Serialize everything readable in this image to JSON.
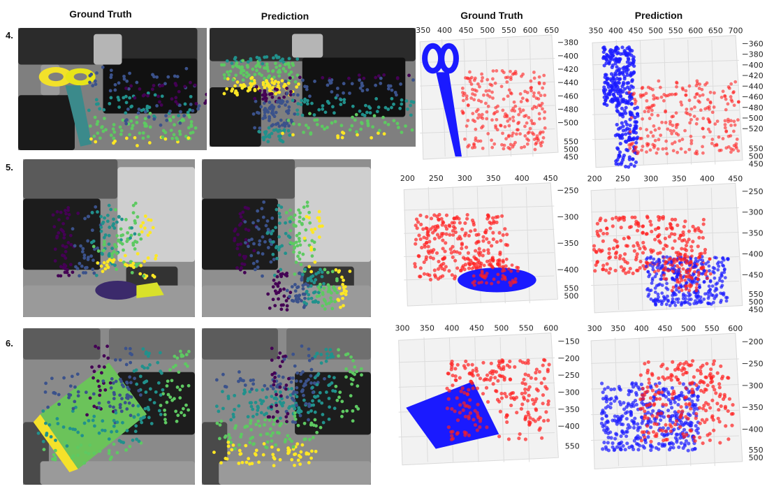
{
  "headers": [
    "Ground Truth",
    "Prediction",
    "Ground Truth",
    "Prediction"
  ],
  "row_labels": [
    "4.",
    "5.",
    "6."
  ],
  "colors": {
    "object": "#1a1aff",
    "hand": "#ff2020",
    "viridis": [
      "#440154",
      "#3b528b",
      "#21918c",
      "#5ec962",
      "#fde725"
    ]
  },
  "plots": [
    {
      "id": "r4-gt",
      "xticks": [
        "350",
        "400",
        "450",
        "500",
        "550",
        "600",
        "650"
      ],
      "zticks": [
        "380",
        "400",
        "420",
        "440",
        "460",
        "480",
        "500"
      ],
      "yticks": [
        "550",
        "500",
        "450"
      ]
    },
    {
      "id": "r4-pred",
      "xticks": [
        "350",
        "400",
        "450",
        "500",
        "550",
        "600",
        "650",
        "700"
      ],
      "zticks": [
        "360",
        "380",
        "400",
        "420",
        "440",
        "460",
        "480",
        "500",
        "520"
      ],
      "yticks": [
        "550",
        "500",
        "450"
      ]
    },
    {
      "id": "r5-gt",
      "xticks": [
        "200",
        "250",
        "300",
        "350",
        "400",
        "450"
      ],
      "zticks": [
        "250",
        "300",
        "350",
        "400"
      ],
      "yticks": [
        "550",
        "500"
      ]
    },
    {
      "id": "r5-pred",
      "xticks": [
        "200",
        "250",
        "300",
        "350",
        "400",
        "450"
      ],
      "zticks": [
        "250",
        "300",
        "350",
        "400",
        "450"
      ],
      "yticks": [
        "550",
        "500",
        "450"
      ]
    },
    {
      "id": "r6-gt",
      "xticks": [
        "300",
        "350",
        "400",
        "450",
        "500",
        "550",
        "600"
      ],
      "zticks": [
        "150",
        "200",
        "250",
        "300",
        "350",
        "400"
      ],
      "yticks": [
        "550"
      ]
    },
    {
      "id": "r6-pred",
      "xticks": [
        "300",
        "350",
        "400",
        "450",
        "500",
        "550",
        "600"
      ],
      "zticks": [
        "200",
        "250",
        "300",
        "350",
        "400"
      ],
      "yticks": [
        "550",
        "500"
      ]
    }
  ]
}
